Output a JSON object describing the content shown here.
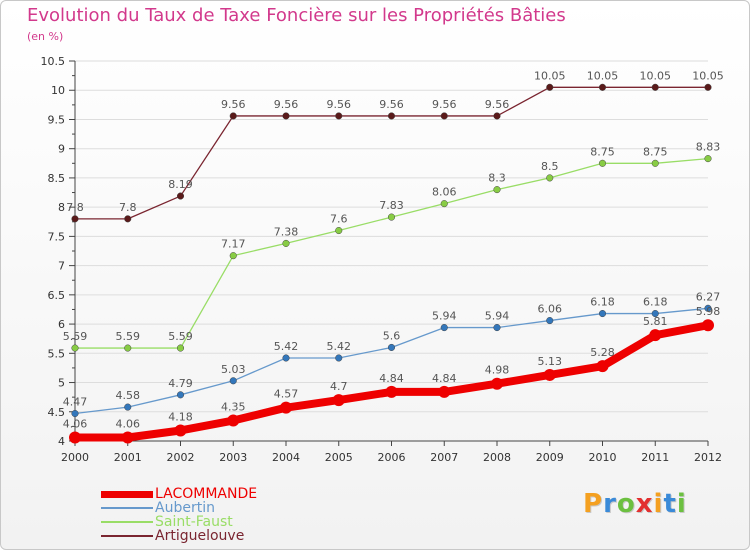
{
  "page": {
    "title": "Evolution du Taux de Taxe Foncière sur les Propriétés Bâties",
    "subtitle": "(en %)",
    "logo": {
      "text": "Proxiti",
      "letter_colors": [
        "#f4a020",
        "#3a8ad8",
        "#6cc040",
        "#e33030",
        "#f4a020",
        "#3a8ad8",
        "#6cc040"
      ]
    }
  },
  "colors": {
    "title": "#d2398c",
    "axis": "#444444",
    "tick_text": "#333333",
    "grid": "#dddddd",
    "value_label": "#555555"
  },
  "chart_data": {
    "type": "line",
    "title": "Evolution du Taux de Taxe Foncière sur les Propriétés Bâties",
    "ylabel": "(en %)",
    "xlabel": "",
    "x": [
      "2000",
      "2001",
      "2002",
      "2003",
      "2004",
      "2005",
      "2006",
      "2007",
      "2008",
      "2009",
      "2010",
      "2011",
      "2012"
    ],
    "ylim": [
      4,
      10.5
    ],
    "yticks": [
      "4",
      "4.5",
      "5",
      "5.5",
      "6",
      "6.5",
      "7",
      "7.5",
      "8",
      "8.5",
      "9",
      "9.5",
      "10",
      "10.5"
    ],
    "grid": "horizontal",
    "legend_position": "bottom-left",
    "series": [
      {
        "name": "Artiguelouve",
        "color": "#7a2530",
        "marker": "#5a1a1a",
        "line_width": 1.3,
        "values": [
          7.8,
          7.8,
          8.19,
          9.56,
          9.56,
          9.56,
          9.56,
          9.56,
          9.56,
          10.05,
          10.05,
          10.05,
          10.05
        ],
        "labels": [
          "7.8",
          "7.8",
          "8.19",
          "9.56",
          "9.56",
          "9.56",
          "9.56",
          "9.56",
          "9.56",
          "10.05",
          "10.05",
          "10.05",
          "10.05"
        ]
      },
      {
        "name": "Saint-Faust",
        "color": "#99dd66",
        "marker": "#88cc44",
        "line_width": 1.3,
        "values": [
          5.59,
          5.59,
          5.59,
          7.17,
          7.38,
          7.6,
          7.83,
          8.06,
          8.3,
          8.5,
          8.75,
          8.75,
          8.83
        ],
        "labels": [
          "5.59",
          "5.59",
          "5.59",
          "7.17",
          "7.38",
          "7.6",
          "7.83",
          "8.06",
          "8.3",
          "8.5",
          "8.75",
          "8.75",
          "8.83"
        ]
      },
      {
        "name": "Aubertin",
        "color": "#6699cc",
        "marker": "#3377bb",
        "line_width": 1.3,
        "values": [
          4.47,
          4.58,
          4.79,
          5.03,
          5.42,
          5.42,
          5.6,
          5.94,
          5.94,
          6.06,
          6.18,
          6.18,
          6.27
        ],
        "labels": [
          "4.47",
          "4.58",
          "4.79",
          "5.03",
          "5.42",
          "5.42",
          "5.6",
          "5.94",
          "5.94",
          "6.06",
          "6.18",
          "6.18",
          "6.27"
        ]
      },
      {
        "name": "LACOMMANDE",
        "color": "#ee0000",
        "marker": "#ee0000",
        "line_width": 8,
        "values": [
          4.06,
          4.06,
          4.18,
          4.35,
          4.57,
          4.7,
          4.84,
          4.84,
          4.98,
          5.13,
          5.28,
          5.81,
          5.98
        ],
        "labels": [
          "4.06",
          "4.06",
          "4.18",
          "4.35",
          "4.57",
          "4.7",
          "4.84",
          "4.84",
          "4.98",
          "5.13",
          "5.28",
          "5.81",
          "5.98"
        ]
      }
    ],
    "legend": [
      {
        "name": "LACOMMANDE",
        "color": "#ee0000"
      },
      {
        "name": "Aubertin",
        "color": "#6699cc"
      },
      {
        "name": "Saint-Faust",
        "color": "#99dd66"
      },
      {
        "name": "Artiguelouve",
        "color": "#7a2530"
      }
    ]
  }
}
